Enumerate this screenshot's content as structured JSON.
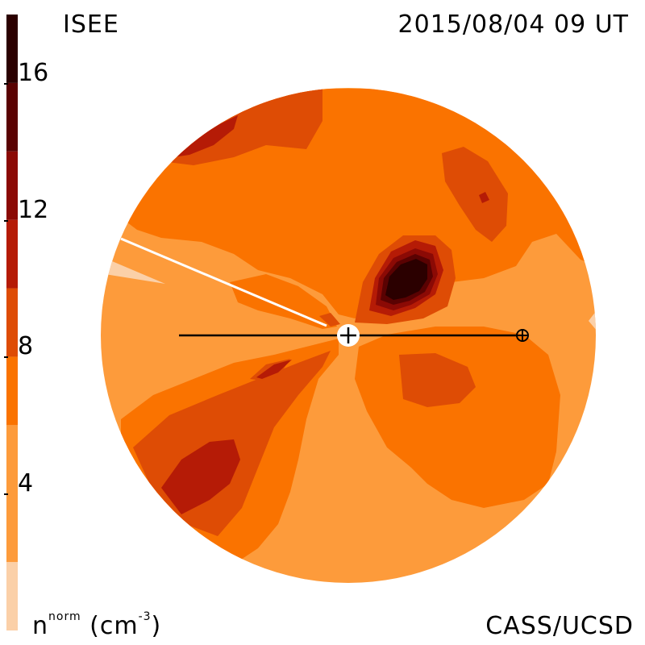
{
  "header": {
    "instrument": "ISEE",
    "timestamp": "2015/08/04 09 UT"
  },
  "footer": {
    "credit": "CASS/UCSD",
    "quantity_label": "n",
    "quantity_sup": "norm",
    "quantity_unit": "(cm",
    "quantity_unit_exp": "-3",
    "quantity_unit_close": ")"
  },
  "colorbar": {
    "min": 0,
    "max": 18,
    "levels": [
      {
        "from": 0,
        "to": 2,
        "color": "#fbd0a8"
      },
      {
        "from": 2,
        "to": 6,
        "color": "#fd9b3b"
      },
      {
        "from": 6,
        "to": 8,
        "color": "#fa7300"
      },
      {
        "from": 8,
        "to": 10,
        "color": "#de4c05"
      },
      {
        "from": 10,
        "to": 12,
        "color": "#b51b06"
      },
      {
        "from": 12,
        "to": 14,
        "color": "#8b0a05"
      },
      {
        "from": 14,
        "to": 16,
        "color": "#5a0202"
      },
      {
        "from": 16,
        "to": 18,
        "color": "#2b0000"
      }
    ],
    "tick_values": [
      4,
      8,
      12,
      16
    ],
    "tick_labels": [
      "4",
      "8",
      "12",
      "16"
    ]
  },
  "map": {
    "background_color": "#fd9b3b",
    "sun_symbol": "sun-center-marker",
    "earth_symbol": "earth-marker",
    "colors": {
      "c0": "#fbd0a8",
      "c1": "#fd9b3b",
      "c2": "#fa7300",
      "c3": "#de4c05",
      "c4": "#b51b06",
      "c5": "#8b0a05",
      "c6": "#5a0202",
      "c7": "#2b0000"
    }
  }
}
